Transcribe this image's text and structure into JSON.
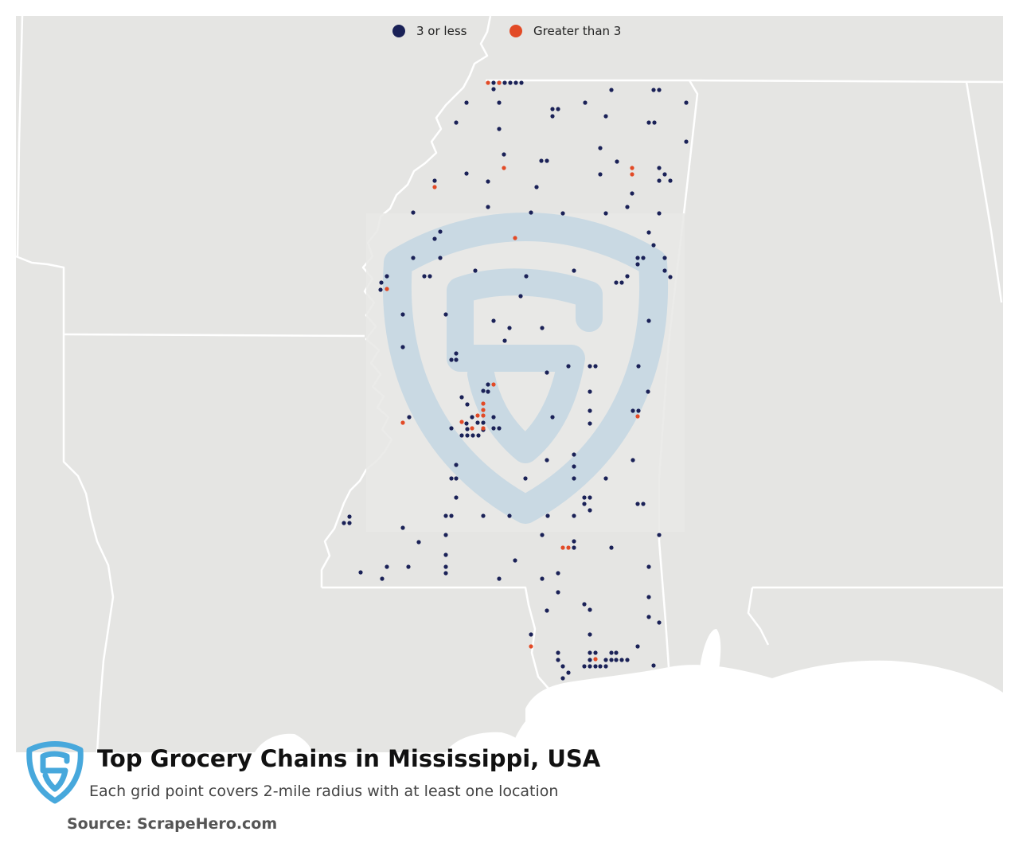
{
  "legend": {
    "items": [
      {
        "label": "3 or less",
        "color": "#1a2157"
      },
      {
        "label": "Greater than 3",
        "color": "#e24a26"
      }
    ]
  },
  "colors": {
    "land": "#e5e5e3",
    "water": "#ffffff",
    "state_border": "#ffffff",
    "watermark": "#b9d3e6",
    "logo": "#47a8dc"
  },
  "footer": {
    "title": "Top Grocery Chains in Mississippi, USA",
    "subtitle": "Each grid point covers 2-mile radius with at least one location",
    "source": "Source: ScrapeHero.com",
    "logo_icon": "scrapehero-shield-icon"
  }
}
